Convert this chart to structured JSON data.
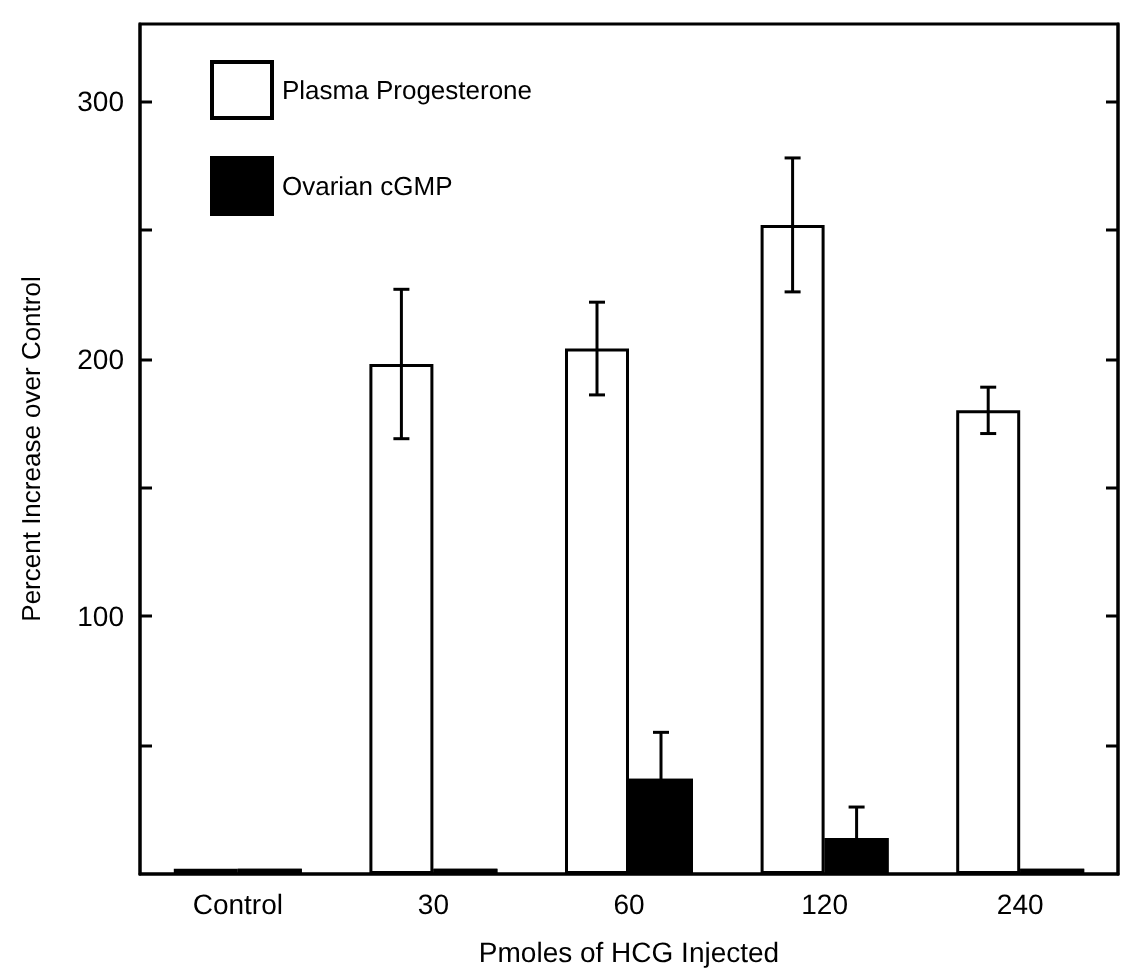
{
  "chart_data": {
    "type": "bar",
    "xlabel": "Pmoles of HCG Injected",
    "ylabel": "Percent Increase over Control",
    "categories": [
      "Control",
      "30",
      "60",
      "120",
      "240"
    ],
    "series": [
      {
        "name": "Plasma Progesterone",
        "color": "#ffffff",
        "values": [
          2,
          198,
          204,
          252,
          180
        ],
        "errors": [
          null,
          29,
          18,
          26,
          9
        ]
      },
      {
        "name": "Ovarian cGMP",
        "color": "#000000",
        "values": [
          2,
          2,
          37,
          14,
          2
        ],
        "errors": [
          null,
          null,
          18,
          12,
          null
        ]
      }
    ],
    "ylim": [
      0,
      330
    ],
    "yticks": [
      {
        "value": 50,
        "label": null
      },
      100,
      {
        "value": 150,
        "label": null
      },
      200,
      {
        "value": 250,
        "label": null
      },
      300
    ],
    "grid": false,
    "legend": "top left"
  }
}
